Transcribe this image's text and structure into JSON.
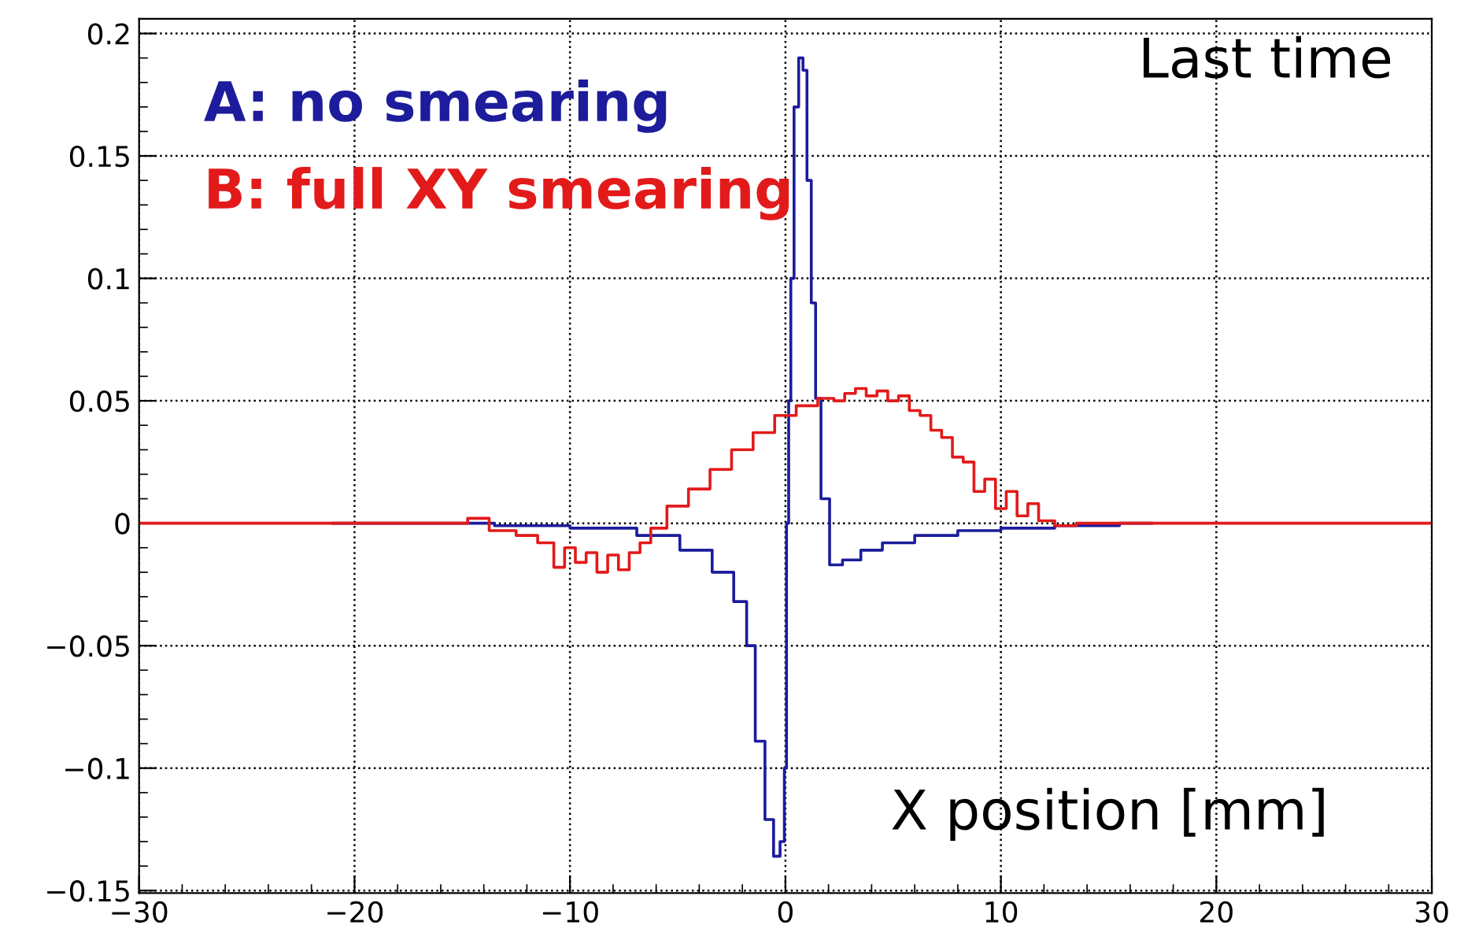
{
  "chart_data": {
    "type": "step",
    "xlabel": "X position [mm]",
    "annotations": [
      "Last time"
    ],
    "xlim": [
      -30,
      30
    ],
    "xticks": [
      {
        "value": -30,
        "label": "−30"
      },
      {
        "value": -20,
        "label": "−20"
      },
      {
        "value": -10,
        "label": "−10"
      },
      0,
      10,
      20,
      30
    ],
    "ylim": [
      -0.151,
      0.206
    ],
    "yticks": [
      {
        "value": -0.15,
        "label": "−0.15"
      },
      {
        "value": -0.1,
        "label": "−0.1"
      },
      {
        "value": -0.05,
        "label": "−0.05"
      },
      0,
      0.05,
      0.1,
      0.15,
      0.2
    ],
    "grid": true,
    "legend": "top left",
    "series": [
      {
        "name": "A: no smearing",
        "color": "#1c1c9c",
        "x": [
          -21,
          -15,
          -12,
          -8,
          -5.8,
          -4,
          -2.8,
          -2,
          -1.6,
          -1.2,
          -0.7,
          -0.4,
          -0.1,
          0,
          0.1,
          0.2,
          0.3,
          0.5,
          0.73,
          0.9,
          1.1,
          1.3,
          1.5,
          1.8,
          2.3,
          3,
          4,
          5,
          7,
          9,
          11,
          14,
          17
        ],
        "values": [
          0,
          0,
          -0.001,
          -0.002,
          -0.005,
          -0.011,
          -0.02,
          -0.032,
          -0.05,
          -0.089,
          -0.121,
          -0.136,
          -0.13,
          -0.1,
          0.0,
          0.05,
          0.1,
          0.17,
          0.19,
          0.185,
          0.14,
          0.09,
          0.051,
          0.01,
          -0.017,
          -0.015,
          -0.011,
          -0.008,
          -0.005,
          -0.003,
          -0.002,
          -0.001,
          0
        ]
      },
      {
        "name": "B: full XY smearing",
        "color": "#e31a1a",
        "x": [
          -30,
          -15,
          -14.5,
          -13,
          -12,
          -11,
          -10.5,
          -10,
          -9.5,
          -9,
          -8.5,
          -8,
          -7.5,
          -7,
          -6.5,
          -6,
          -5,
          -4,
          -3,
          -2,
          -1,
          0,
          1,
          2,
          2.5,
          3,
          3.5,
          4,
          4.5,
          5,
          5.5,
          6,
          6.5,
          7,
          7.5,
          8,
          8.5,
          9,
          9.5,
          10,
          10.5,
          11,
          11.5,
          12,
          13,
          14,
          30
        ],
        "values": [
          0,
          0,
          0.002,
          -0.003,
          -0.005,
          -0.008,
          -0.018,
          -0.01,
          -0.016,
          -0.012,
          -0.02,
          -0.013,
          -0.019,
          -0.012,
          -0.008,
          -0.002,
          0.007,
          0.014,
          0.022,
          0.03,
          0.037,
          0.044,
          0.048,
          0.051,
          0.05,
          0.053,
          0.055,
          0.052,
          0.054,
          0.05,
          0.052,
          0.046,
          0.044,
          0.038,
          0.035,
          0.027,
          0.025,
          0.013,
          0.018,
          0.006,
          0.013,
          0.003,
          0.008,
          0.001,
          -0.001,
          0,
          0
        ]
      }
    ]
  }
}
